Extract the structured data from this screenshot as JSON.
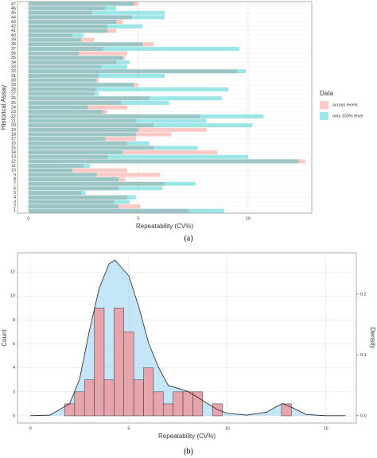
{
  "chart_data": [
    {
      "type": "overlap_barh",
      "xlabel": "Repeatability (CV%)",
      "ylabel": "Historical Assay",
      "legend_title": "Data",
      "legend": "right",
      "caption": "(a)",
      "categories": [
        "1",
        "2",
        "3",
        "4",
        "5",
        "6",
        "7",
        "8",
        "9",
        "10",
        "11",
        "12",
        "13",
        "14",
        "15",
        "16",
        "17",
        "18",
        "19",
        "20",
        "21",
        "22",
        "23",
        "24",
        "25",
        "26",
        "27",
        "28",
        "29",
        "30",
        "31",
        "32",
        "33",
        "34",
        "35",
        "36",
        "37",
        "38",
        "39",
        "40",
        "41",
        "42",
        "43",
        "44",
        "45",
        "46",
        "47"
      ],
      "series": [
        {
          "name": "across levels",
          "color": "#f8766d",
          "values": [
            7.3,
            5.1,
            3.9,
            4.5,
            2.4,
            4.1,
            6.2,
            4.4,
            6.0,
            4.5,
            2.5,
            12.6,
            3.6,
            8.6,
            5.7,
            4.5,
            4.9,
            6.5,
            8.1,
            5.7,
            4.9,
            7.8,
            3.6,
            4.5,
            4.2,
            5.5,
            3.0,
            3.1,
            5.0,
            3.2,
            3.2,
            9.5,
            3.3,
            4.0,
            4.4,
            4.5,
            3.4,
            5.7,
            3.0,
            2.0,
            4.0,
            3.6,
            4.3,
            4.7,
            2.9,
            3.5,
            5.0
          ]
        },
        {
          "name": "only 100% level",
          "color": "#00bfc4",
          "values": [
            8.9,
            4.1,
            4.6,
            4.9,
            2.6,
            6.1,
            7.6,
            4.1,
            3.1,
            2.0,
            2.8,
            12.3,
            10.0,
            4.3,
            7.7,
            5.5,
            3.5,
            4.9,
            5.0,
            10.2,
            8.1,
            10.7,
            3.4,
            2.7,
            6.4,
            8.8,
            3.2,
            9.1,
            4.8,
            3.1,
            6.2,
            9.9,
            4.5,
            4.6,
            4.3,
            2.3,
            9.6,
            5.2,
            2.4,
            2.5,
            3.6,
            5.2,
            4.0,
            6.2,
            6.2,
            4.0,
            4.8
          ]
        }
      ],
      "xlim": [
        -0.5,
        12.9
      ],
      "xticks": [
        0,
        5,
        10
      ],
      "grid": true
    },
    {
      "type": "histogram_density",
      "xlabel": "Repeatability (CV%)",
      "ylabel": "Count",
      "y2label": "Density",
      "caption": "(b)",
      "bins": [
        1.75,
        2.25,
        2.75,
        3.25,
        3.75,
        4.25,
        4.75,
        5.25,
        5.75,
        6.25,
        6.75,
        7.25,
        7.75,
        8.25,
        8.75,
        9.25,
        9.75,
        10.25,
        10.75,
        11.25,
        11.75,
        12.25,
        12.75,
        13.25
      ],
      "values": [
        1,
        2,
        3,
        9,
        3,
        9,
        7,
        3,
        4,
        2,
        1,
        2,
        2,
        2,
        0,
        1,
        0,
        0,
        0,
        0,
        0,
        0,
        1
      ],
      "color": "#e6a5ad",
      "density": {
        "axis": "y2",
        "color": "#9fd4f5",
        "x": [
          0,
          1,
          2,
          2.5,
          3,
          3.5,
          4,
          4.3,
          5,
          5.5,
          6,
          6.5,
          7,
          7.5,
          8,
          8.5,
          9,
          9.5,
          10,
          11,
          12,
          12.5,
          12.8,
          13.2,
          14,
          15,
          16
        ],
        "values": [
          0,
          0.001,
          0.02,
          0.06,
          0.14,
          0.21,
          0.25,
          0.256,
          0.23,
          0.18,
          0.12,
          0.08,
          0.05,
          0.045,
          0.04,
          0.03,
          0.02,
          0.01,
          0.004,
          0.001,
          0.006,
          0.015,
          0.02,
          0.015,
          0.002,
          0,
          0
        ]
      },
      "xlim": [
        -0.65,
        16.55
      ],
      "xticks": [
        0,
        5,
        10,
        15
      ],
      "ylim": [
        -0.6,
        13.6
      ],
      "yticks": [
        0,
        2,
        4,
        6,
        8,
        10,
        12
      ],
      "y2lim": [
        -0.012,
        0.268
      ],
      "y2ticks": [
        {
          "value": 0,
          "label": "0.0"
        },
        {
          "value": 0.1,
          "label": "0.1"
        },
        {
          "value": 0.2,
          "label": "0.2"
        }
      ],
      "grid": true
    }
  ]
}
